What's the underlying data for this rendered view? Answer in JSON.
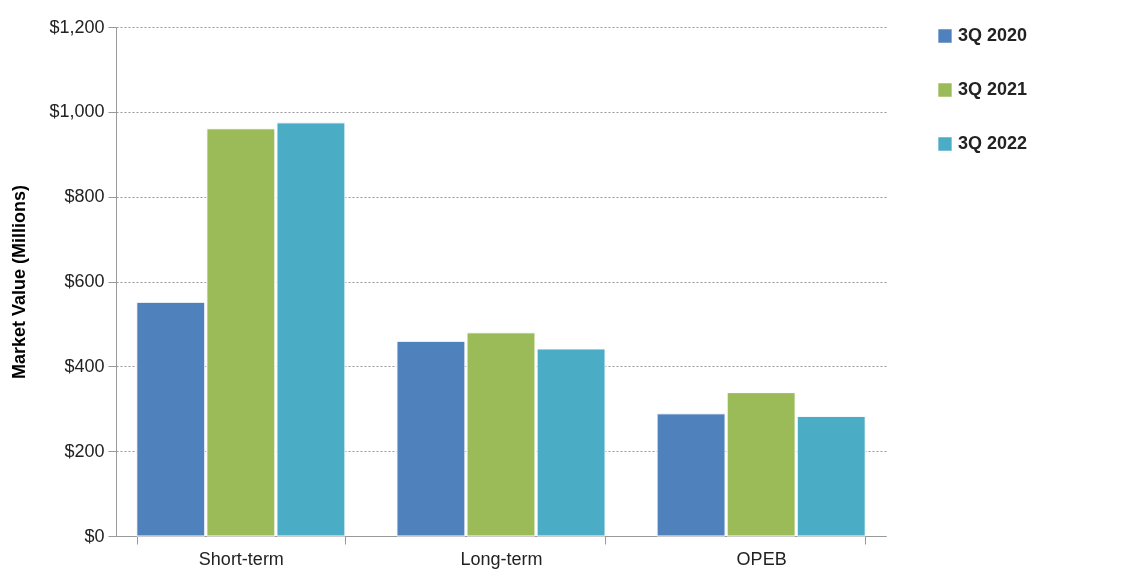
{
  "chart_data": {
    "type": "bar",
    "ylabel": "Market Value (Millions)",
    "categories": [
      "Short-term",
      "Long-term",
      "OPEB"
    ],
    "series": [
      {
        "name": "3Q 2020",
        "color": "#4f81bd",
        "values": [
          551,
          459,
          288
        ]
      },
      {
        "name": "3Q 2021",
        "color": "#9bbb59",
        "values": [
          960,
          479,
          338
        ]
      },
      {
        "name": "3Q 2022",
        "color": "#4bacc6",
        "values": [
          974,
          441,
          282
        ]
      }
    ],
    "ylim": [
      0,
      1200
    ],
    "yticks": [
      {
        "value": 0,
        "label": "$0"
      },
      {
        "value": 200,
        "label": "$200"
      },
      {
        "value": 400,
        "label": "$400"
      },
      {
        "value": 600,
        "label": "$600"
      },
      {
        "value": 800,
        "label": "$800"
      },
      {
        "value": 1000,
        "label": "$1,000"
      },
      {
        "value": 1200,
        "label": "$1,200"
      }
    ],
    "grid": "y",
    "legend": "right"
  }
}
